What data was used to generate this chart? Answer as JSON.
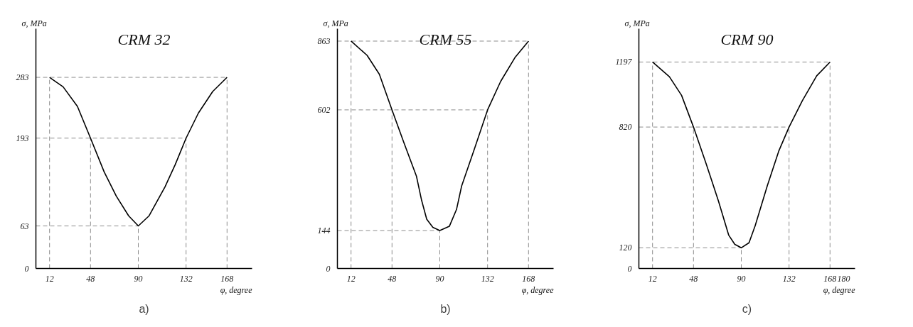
{
  "chart_data": [
    {
      "type": "line",
      "title": "CRM 32",
      "xlabel": "φ, degree",
      "ylabel": "σ, MPa",
      "annotations": [
        "a)"
      ],
      "grid": false,
      "xlim": [
        0,
        190
      ],
      "ylim": [
        0,
        355
      ],
      "xticks": [
        12,
        48,
        90,
        132,
        168
      ],
      "yticks": [
        0,
        63,
        193,
        283
      ],
      "series": [
        {
          "color": "#000000",
          "x": [
            12,
            23.9,
            36.5,
            48,
            60,
            70.7,
            81.5,
            90,
            99.5,
            113.5,
            122.5,
            132,
            142.8,
            155.4,
            168
          ],
          "values": [
            283,
            269,
            240,
            193,
            143,
            107,
            78,
            63,
            78,
            121,
            154,
            193,
            230,
            262,
            283
          ]
        }
      ],
      "ref_lines": [
        {
          "axis": "y",
          "value": 283
        },
        {
          "axis": "y",
          "value": 193
        },
        {
          "axis": "y",
          "value": 63
        },
        {
          "axis": "x",
          "value": 12
        },
        {
          "axis": "x",
          "value": 48
        },
        {
          "axis": "x",
          "value": 90
        },
        {
          "axis": "x",
          "value": 132
        },
        {
          "axis": "x",
          "value": 168
        }
      ]
    },
    {
      "type": "line",
      "title": "CRM 55",
      "xlabel": "φ, degree",
      "ylabel": "σ, MPa",
      "annotations": [
        "b)"
      ],
      "grid": false,
      "xlim": [
        0,
        190
      ],
      "ylim": [
        0,
        910
      ],
      "xticks": [
        12,
        48,
        90,
        132,
        168
      ],
      "yticks": [
        0,
        144,
        602,
        863
      ],
      "series": [
        {
          "color": "#000000",
          "x": [
            12,
            26.1,
            36.9,
            48,
            58.6,
            69.5,
            74,
            78.5,
            83.9,
            90,
            98.4,
            104.7,
            109.2,
            120,
            132,
            143.5,
            156,
            168
          ],
          "values": [
            863,
            809,
            737,
            602,
            476,
            350,
            259,
            187,
            156,
            144,
            160,
            224,
            313,
            448,
            602,
            710,
            800,
            863
          ]
        }
      ],
      "ref_lines": [
        {
          "axis": "y",
          "value": 863
        },
        {
          "axis": "y",
          "value": 602
        },
        {
          "axis": "y",
          "value": 144
        },
        {
          "axis": "x",
          "value": 12
        },
        {
          "axis": "x",
          "value": 48
        },
        {
          "axis": "x",
          "value": 90
        },
        {
          "axis": "x",
          "value": 132
        },
        {
          "axis": "x",
          "value": 168
        }
      ]
    },
    {
      "type": "line",
      "title": "CRM 90",
      "xlabel": "φ, degree",
      "ylabel": "σ, MPa",
      "annotations": [
        "c)"
      ],
      "grid": false,
      "xlim": [
        0,
        190
      ],
      "ylim": [
        0,
        1390
      ],
      "xticks": [
        12,
        48,
        90,
        132,
        168,
        180
      ],
      "yticks": [
        0,
        120,
        820,
        1197
      ],
      "series": [
        {
          "color": "#000000",
          "x": [
            12,
            26.8,
            37.5,
            48,
            59.1,
            69.9,
            78.9,
            84.3,
            90,
            96.8,
            102.2,
            113,
            122.9,
            132,
            143.7,
            156.3,
            168
          ],
          "values": [
            1197,
            1112,
            1004,
            820,
            608,
            392,
            194,
            140,
            120,
            149,
            248,
            482,
            680,
            820,
            973,
            1117,
            1197
          ]
        }
      ],
      "ref_lines": [
        {
          "axis": "y",
          "value": 1197
        },
        {
          "axis": "y",
          "value": 820
        },
        {
          "axis": "y",
          "value": 120
        },
        {
          "axis": "x",
          "value": 12
        },
        {
          "axis": "x",
          "value": 48
        },
        {
          "axis": "x",
          "value": 90
        },
        {
          "axis": "x",
          "value": 132
        },
        {
          "axis": "x",
          "value": 168
        }
      ]
    }
  ]
}
